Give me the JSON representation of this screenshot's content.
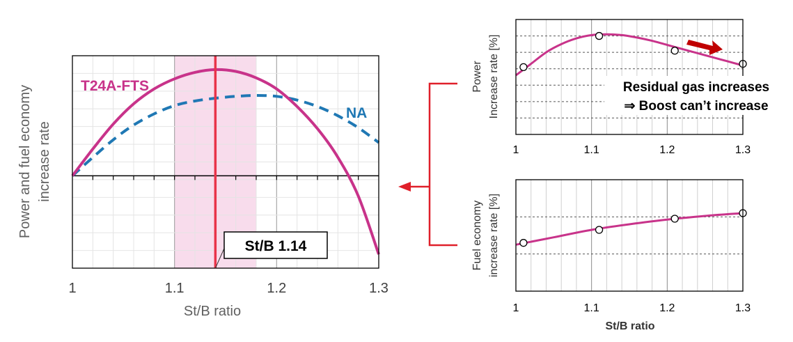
{
  "chart_data": [
    {
      "type": "line",
      "xlabel": "St/B ratio",
      "ylabel_lines": [
        "Power and fuel economy",
        "increase rate"
      ],
      "xlim": [
        1.0,
        1.3
      ],
      "x_ticks": [
        "1",
        "1.1",
        "1.2",
        "1.3"
      ],
      "x_tick_values": [
        1.0,
        1.1,
        1.2,
        1.3
      ],
      "ylim": [
        -1.0,
        1.3
      ],
      "grid": true,
      "highlight_band": [
        1.1,
        1.18
      ],
      "marker_x": 1.14,
      "marker_label": "St/B 1.14",
      "series": [
        {
          "name": "T24A-FTS",
          "color": "#c8338a",
          "style": "solid",
          "x": [
            1.0,
            1.02,
            1.04,
            1.06,
            1.08,
            1.1,
            1.12,
            1.14,
            1.16,
            1.18,
            1.2,
            1.22,
            1.24,
            1.26,
            1.28,
            1.3
          ],
          "y": [
            0.0,
            0.29,
            0.56,
            0.78,
            0.94,
            1.05,
            1.12,
            1.15,
            1.13,
            1.06,
            0.94,
            0.75,
            0.51,
            0.2,
            -0.22,
            -0.85
          ]
        },
        {
          "name": "NA",
          "color": "#1f78b4",
          "style": "dashed",
          "x": [
            1.0,
            1.02,
            1.04,
            1.06,
            1.08,
            1.1,
            1.12,
            1.14,
            1.16,
            1.18,
            1.2,
            1.22,
            1.24,
            1.26,
            1.28,
            1.3
          ],
          "y": [
            0.0,
            0.2,
            0.39,
            0.55,
            0.67,
            0.76,
            0.81,
            0.84,
            0.86,
            0.87,
            0.86,
            0.82,
            0.75,
            0.65,
            0.52,
            0.36
          ]
        }
      ]
    },
    {
      "type": "line",
      "ylabel_lines": [
        "Power",
        "Increase rate [%]"
      ],
      "xlim": [
        1.0,
        1.3
      ],
      "x_ticks": [
        "1",
        "1.1",
        "1.2",
        "1.3"
      ],
      "x_tick_values": [
        1.0,
        1.1,
        1.2,
        1.3
      ],
      "ylim": [
        0,
        7
      ],
      "grid": true,
      "series": [
        {
          "color": "#c8338a",
          "points_x": [
            1.01,
            1.11,
            1.21,
            1.3
          ],
          "points_y": [
            4.1,
            6.0,
            5.1,
            4.3
          ],
          "curve_x": [
            1.0,
            1.02,
            1.04,
            1.06,
            1.08,
            1.1,
            1.12,
            1.14,
            1.16,
            1.18,
            1.2,
            1.22,
            1.24,
            1.26,
            1.28,
            1.3
          ],
          "curve_y": [
            3.6,
            4.3,
            5.0,
            5.5,
            5.85,
            6.05,
            6.1,
            6.05,
            5.9,
            5.7,
            5.45,
            5.2,
            4.95,
            4.7,
            4.45,
            4.2
          ]
        }
      ],
      "annotation_lines": [
        "Residual gas increases",
        "⇒ Boost can’t  increase"
      ]
    },
    {
      "type": "line",
      "ylabel_lines": [
        "Fuel economy",
        "increase rate [%]"
      ],
      "xlabel": "St/B ratio",
      "xlim": [
        1.0,
        1.3
      ],
      "x_ticks": [
        "1",
        "1.1",
        "1.2",
        "1.3"
      ],
      "x_tick_values": [
        1.0,
        1.1,
        1.2,
        1.3
      ],
      "ylim": [
        0,
        6
      ],
      "grid": true,
      "series": [
        {
          "color": "#c8338a",
          "points_x": [
            1.01,
            1.11,
            1.21,
            1.3
          ],
          "points_y": [
            2.6,
            3.3,
            3.9,
            4.2
          ],
          "curve_x": [
            1.0,
            1.05,
            1.1,
            1.15,
            1.2,
            1.25,
            1.3
          ],
          "curve_y": [
            2.5,
            2.9,
            3.3,
            3.6,
            3.85,
            4.05,
            4.2
          ]
        }
      ]
    }
  ],
  "colors": {
    "tfs": "#c8338a",
    "na": "#1f78b4",
    "band": "#f8dcec",
    "marker": "#e8344a",
    "connector": "#e0202a",
    "arrow": "#c00000"
  }
}
